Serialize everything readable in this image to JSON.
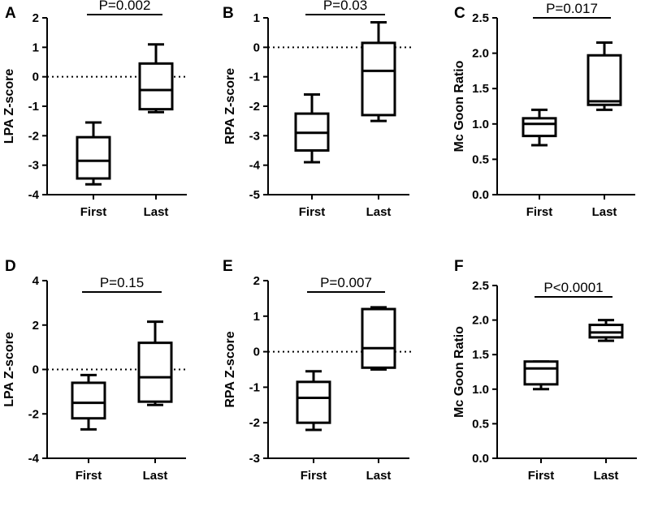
{
  "chart_data": [
    {
      "panel": "A",
      "type": "box",
      "ylabel": "LPA Z-score",
      "ylim": [
        -4,
        2
      ],
      "yticks": [
        -4,
        -3,
        -2,
        -1,
        0,
        1,
        2
      ],
      "yticks_labels": [
        "-4",
        "-3",
        "-2",
        "-1",
        "0",
        "1",
        "2"
      ],
      "reference_line": 0,
      "pvalue": "P=0.002",
      "categories": [
        "First",
        "Last"
      ],
      "boxes": [
        {
          "name": "First",
          "min": -3.65,
          "q1": -3.45,
          "median": -2.85,
          "q3": -2.05,
          "max": -1.55
        },
        {
          "name": "Last",
          "min": -1.2,
          "q1": -1.1,
          "median": -0.45,
          "q3": 0.45,
          "max": 1.1
        }
      ]
    },
    {
      "panel": "B",
      "type": "box",
      "ylabel": "RPA Z-score",
      "ylim": [
        -5,
        1
      ],
      "yticks": [
        -5,
        -4,
        -3,
        -2,
        -1,
        0,
        1
      ],
      "yticks_labels": [
        "-5",
        "-4",
        "-3",
        "-2",
        "-1",
        "0",
        "1"
      ],
      "reference_line": 0,
      "pvalue": "P=0.03",
      "categories": [
        "First",
        "Last"
      ],
      "boxes": [
        {
          "name": "First",
          "min": -3.9,
          "q1": -3.5,
          "median": -2.9,
          "q3": -2.25,
          "max": -1.6
        },
        {
          "name": "Last",
          "min": -2.5,
          "q1": -2.3,
          "median": -0.8,
          "q3": 0.15,
          "max": 0.85
        }
      ]
    },
    {
      "panel": "C",
      "type": "box",
      "ylabel": "Mc Goon Ratio",
      "ylim": [
        0,
        2.5
      ],
      "yticks": [
        0,
        0.5,
        1,
        1.5,
        2,
        2.5
      ],
      "yticks_labels": [
        "0.0",
        "0.5",
        "1.0",
        "1.5",
        "2.0",
        "2.5"
      ],
      "reference_line": null,
      "pvalue": "P=0.017",
      "categories": [
        "First",
        "Last"
      ],
      "boxes": [
        {
          "name": "First",
          "min": 0.7,
          "q1": 0.83,
          "median": 1.0,
          "q3": 1.08,
          "max": 1.2
        },
        {
          "name": "Last",
          "min": 1.2,
          "q1": 1.27,
          "median": 1.32,
          "q3": 1.97,
          "max": 2.15
        }
      ]
    },
    {
      "panel": "D",
      "type": "box",
      "ylabel": "LPA Z-score",
      "ylim": [
        -4,
        4
      ],
      "yticks": [
        -4,
        -2,
        0,
        2,
        4
      ],
      "yticks_labels": [
        "-4",
        "-2",
        "0",
        "2",
        "4"
      ],
      "reference_line": 0,
      "pvalue": "P=0.15",
      "categories": [
        "First",
        "Last"
      ],
      "boxes": [
        {
          "name": "First",
          "min": -2.7,
          "q1": -2.2,
          "median": -1.5,
          "q3": -0.6,
          "max": -0.25
        },
        {
          "name": "Last",
          "min": -1.6,
          "q1": -1.45,
          "median": -0.35,
          "q3": 1.2,
          "max": 2.15
        }
      ]
    },
    {
      "panel": "E",
      "type": "box",
      "ylabel": "RPA Z-score",
      "ylim": [
        -3,
        2
      ],
      "yticks": [
        -3,
        -2,
        -1,
        0,
        1,
        2
      ],
      "yticks_labels": [
        "-3",
        "-2",
        "-1",
        "0",
        "1",
        "2"
      ],
      "reference_line": 0,
      "pvalue": "P=0.007",
      "categories": [
        "First",
        "Last"
      ],
      "boxes": [
        {
          "name": "First",
          "min": -2.2,
          "q1": -2.0,
          "median": -1.3,
          "q3": -0.85,
          "max": -0.55
        },
        {
          "name": "Last",
          "min": -0.5,
          "q1": -0.45,
          "median": 0.1,
          "q3": 1.2,
          "max": 1.25
        }
      ]
    },
    {
      "panel": "F",
      "type": "box",
      "ylabel": "Mc Goon Ratio",
      "ylim": [
        0,
        2.5
      ],
      "yticks": [
        0,
        0.5,
        1,
        1.5,
        2,
        2.5
      ],
      "yticks_labels": [
        "0.0",
        "0.5",
        "1.0",
        "1.5",
        "2.0",
        "2.5"
      ],
      "reference_line": null,
      "pvalue": "P<0.0001",
      "categories": [
        "First",
        "Last"
      ],
      "boxes": [
        {
          "name": "First",
          "min": 1.0,
          "q1": 1.07,
          "median": 1.3,
          "q3": 1.4,
          "max": 1.4
        },
        {
          "name": "Last",
          "min": 1.7,
          "q1": 1.75,
          "median": 1.82,
          "q3": 1.93,
          "max": 2.0
        }
      ]
    }
  ]
}
